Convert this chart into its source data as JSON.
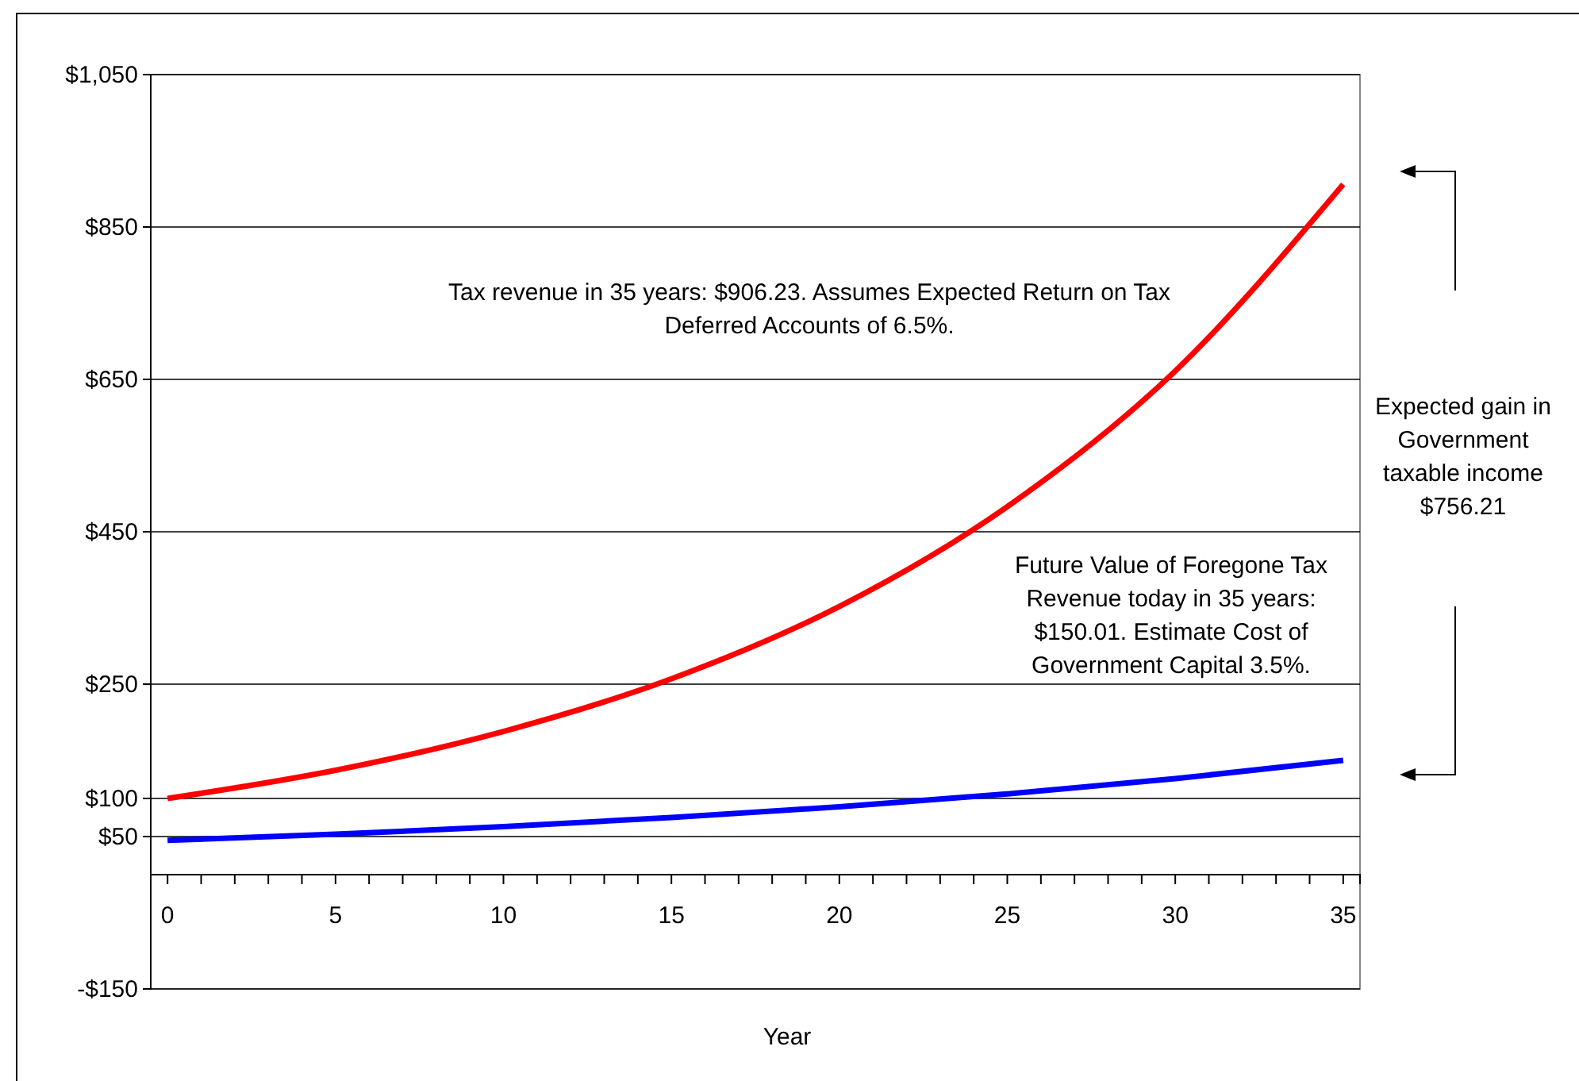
{
  "chart_data": {
    "type": "line",
    "xlabel": "Year",
    "x": [
      0,
      5,
      10,
      15,
      20,
      25,
      30,
      35
    ],
    "series": [
      {
        "color": "#ff0000",
        "values": [
          100,
          137,
          188,
          257,
          352,
          483,
          661,
          906
        ]
      },
      {
        "color": "#0000ff",
        "values": [
          45,
          53,
          63,
          75,
          89,
          106,
          126,
          150
        ]
      }
    ],
    "xlim": [
      -0.5,
      35.5
    ],
    "xticks": [
      0,
      {
        "value": 1,
        "label": null
      },
      {
        "value": 2,
        "label": null
      },
      {
        "value": 3,
        "label": null
      },
      {
        "value": 4,
        "label": null
      },
      5,
      {
        "value": 6,
        "label": null
      },
      {
        "value": 7,
        "label": null
      },
      {
        "value": 8,
        "label": null
      },
      {
        "value": 9,
        "label": null
      },
      10,
      {
        "value": 11,
        "label": null
      },
      {
        "value": 12,
        "label": null
      },
      {
        "value": 13,
        "label": null
      },
      {
        "value": 14,
        "label": null
      },
      15,
      {
        "value": 16,
        "label": null
      },
      {
        "value": 17,
        "label": null
      },
      {
        "value": 18,
        "label": null
      },
      {
        "value": 19,
        "label": null
      },
      20,
      {
        "value": 21,
        "label": null
      },
      {
        "value": 22,
        "label": null
      },
      {
        "value": 23,
        "label": null
      },
      {
        "value": 24,
        "label": null
      },
      25,
      {
        "value": 26,
        "label": null
      },
      {
        "value": 27,
        "label": null
      },
      {
        "value": 28,
        "label": null
      },
      {
        "value": 29,
        "label": null
      },
      30,
      {
        "value": 31,
        "label": null
      },
      {
        "value": 32,
        "label": null
      },
      {
        "value": 33,
        "label": null
      },
      {
        "value": 34,
        "label": null
      },
      35
    ],
    "ylim": [
      -150,
      1050
    ],
    "yticks": [
      {
        "value": -150,
        "label": "-$150"
      },
      {
        "value": 50,
        "label": "$50"
      },
      {
        "value": 100,
        "label": "$100"
      },
      {
        "value": 250,
        "label": "$250"
      },
      {
        "value": 450,
        "label": "$450"
      },
      {
        "value": 650,
        "label": "$650"
      },
      {
        "value": 850,
        "label": "$850"
      },
      {
        "value": 1050,
        "label": "$1,050"
      }
    ],
    "grid": "y",
    "marker": "none",
    "line_style": "solid",
    "annotations": [
      "Tax revenue in 35 years: $906.23. Assumes Expected Return on Tax Deferred Accounts of 6.5%.",
      "Future Value of Foregone Tax Revenue today in 35 years: $150.01. Estimate Cost of Government Capital 3.5%.",
      "Expected gain in Government taxable income $756.21"
    ]
  }
}
